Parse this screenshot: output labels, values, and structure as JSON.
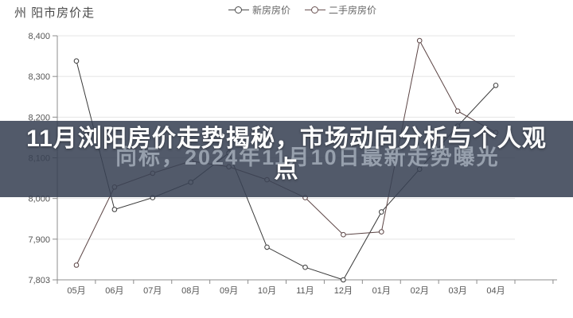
{
  "header": {
    "title": "州 阳市房价走"
  },
  "legend": {
    "items": [
      {
        "label": "新房房价",
        "color": "#4a4a4a"
      },
      {
        "label": "二手房房价",
        "color": "#6a5252"
      }
    ]
  },
  "overlay": {
    "title_line1": "11月浏阳房价走势揭秘，市场动向分析与个人观",
    "title_line2": "点",
    "subtitle": "向标，2024年11月10日最新走势曝光",
    "band_color": "rgba(56,66,84,0.87)",
    "title_color": "#ffffff",
    "subtitle_color": "#97a0ad"
  },
  "chart_data": {
    "type": "line",
    "title": "州 阳市房价走",
    "categories": [
      "05月",
      "06月",
      "07月",
      "08月",
      "09月",
      "10月",
      "11月",
      "12月",
      "01月",
      "02月",
      "03月",
      "04月"
    ],
    "series": [
      {
        "name": "新房房价",
        "color": "#3a3a3a",
        "values": [
          8338,
          7973,
          8002,
          8040,
          8112,
          7881,
          7833,
          7803,
          7967,
          8072,
          8178,
          8278
        ]
      },
      {
        "name": "二手房房价",
        "color": "#5c4545",
        "values": [
          7838,
          8028,
          8062,
          8092,
          8078,
          8046,
          8002,
          7911,
          7918,
          8388,
          8215,
          8162
        ]
      }
    ],
    "y_ticks": [
      8400,
      8300,
      8200,
      8100,
      8000,
      7900,
      7803
    ],
    "y_tick_labels": [
      "8,400",
      "8,300",
      "8,200",
      "8,100",
      "8,000",
      "7,900",
      "7,803"
    ],
    "ylim": [
      7803,
      8400
    ],
    "grid": "horizontal",
    "legend_position": "top",
    "axis_color": "#8c8c8c",
    "grid_color": "#e4e4e4",
    "label_color": "#555555"
  }
}
